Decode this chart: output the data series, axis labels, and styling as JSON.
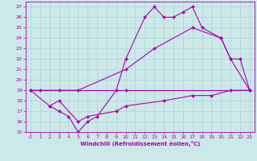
{
  "xlabel": "Windchill (Refroidissement éolien,°C)",
  "ylabel": "",
  "bg_color": "#cce8e8",
  "grid_color": "#aad4d4",
  "line_color": "#aa00aa",
  "xlim": [
    -0.5,
    23.5
  ],
  "ylim": [
    15,
    27.5
  ],
  "xticks": [
    0,
    1,
    2,
    3,
    4,
    5,
    6,
    7,
    8,
    9,
    10,
    11,
    12,
    13,
    14,
    15,
    16,
    17,
    18,
    19,
    20,
    21,
    22,
    23
  ],
  "yticks": [
    15,
    16,
    17,
    18,
    19,
    20,
    21,
    22,
    23,
    24,
    25,
    26,
    27
  ],
  "series": [
    {
      "x": [
        0,
        1,
        3,
        10,
        23
      ],
      "y": [
        19,
        19,
        19,
        19,
        19
      ]
    },
    {
      "x": [
        0,
        2,
        3,
        5,
        6,
        9,
        10,
        14,
        17,
        19,
        21,
        23
      ],
      "y": [
        19,
        17.5,
        18,
        16,
        16.5,
        17,
        17.5,
        18,
        18.5,
        18.5,
        19,
        19
      ]
    },
    {
      "x": [
        0,
        5,
        10,
        13,
        17,
        20,
        21,
        23
      ],
      "y": [
        19,
        19,
        21,
        23,
        25,
        24,
        22,
        19
      ]
    },
    {
      "x": [
        2,
        3,
        4,
        5,
        6,
        7,
        9,
        10,
        12,
        13,
        14,
        15,
        16,
        17,
        18,
        20,
        21,
        22,
        23
      ],
      "y": [
        17.5,
        17,
        16.5,
        15,
        16,
        16.5,
        19,
        22,
        26,
        27,
        26,
        26,
        26.5,
        27,
        25,
        24,
        22,
        22,
        19
      ]
    }
  ]
}
